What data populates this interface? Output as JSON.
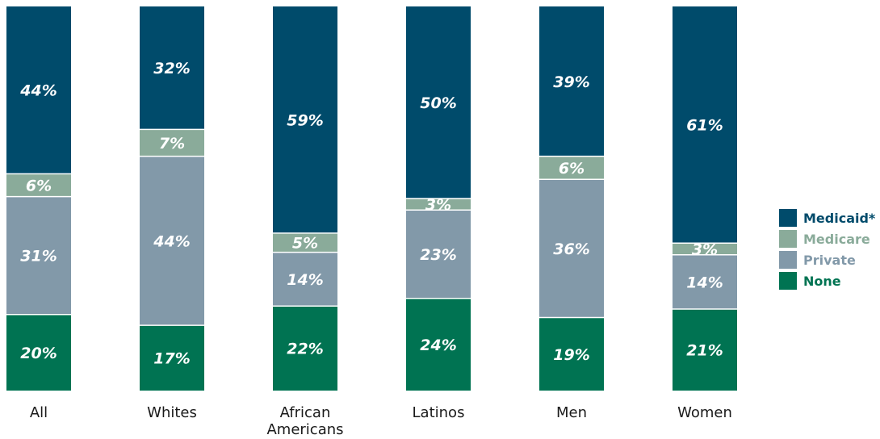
{
  "chart_data": {
    "type": "bar",
    "stacked": true,
    "orientation": "vertical",
    "categories": [
      [
        "All"
      ],
      [
        "Whites"
      ],
      [
        "African",
        "Americans"
      ],
      [
        "Latinos"
      ],
      [
        "Men"
      ],
      [
        "Women"
      ]
    ],
    "series": [
      {
        "name": "None",
        "color": "#007352",
        "values": [
          20,
          17,
          22,
          24,
          19,
          21
        ],
        "labels": [
          "20%",
          "17%",
          "22%",
          "24%",
          "19%",
          "21%"
        ]
      },
      {
        "name": "Private",
        "color": "#8299a9",
        "values": [
          31,
          44,
          14,
          23,
          36,
          14
        ],
        "labels": [
          "31%",
          "44%",
          "14%",
          "23%",
          "36%",
          "14%"
        ]
      },
      {
        "name": "Medicare",
        "color": "#8aab9a",
        "values": [
          6,
          7,
          5,
          3,
          6,
          3
        ],
        "labels": [
          "6%",
          "7%",
          "5%",
          "3%",
          "6%",
          "3%"
        ]
      },
      {
        "name": "Medicaid*",
        "color": "#004b6b",
        "values": [
          44,
          32,
          59,
          50,
          39,
          61
        ],
        "labels": [
          "44%",
          "32%",
          "59%",
          "50%",
          "39%",
          "61%"
        ]
      }
    ],
    "legend": {
      "position": "right",
      "order": [
        "Medicaid*",
        "Medicare",
        "Private",
        "None"
      ]
    },
    "ylim": [
      0,
      100
    ],
    "axes_visible": false,
    "grid": false
  }
}
